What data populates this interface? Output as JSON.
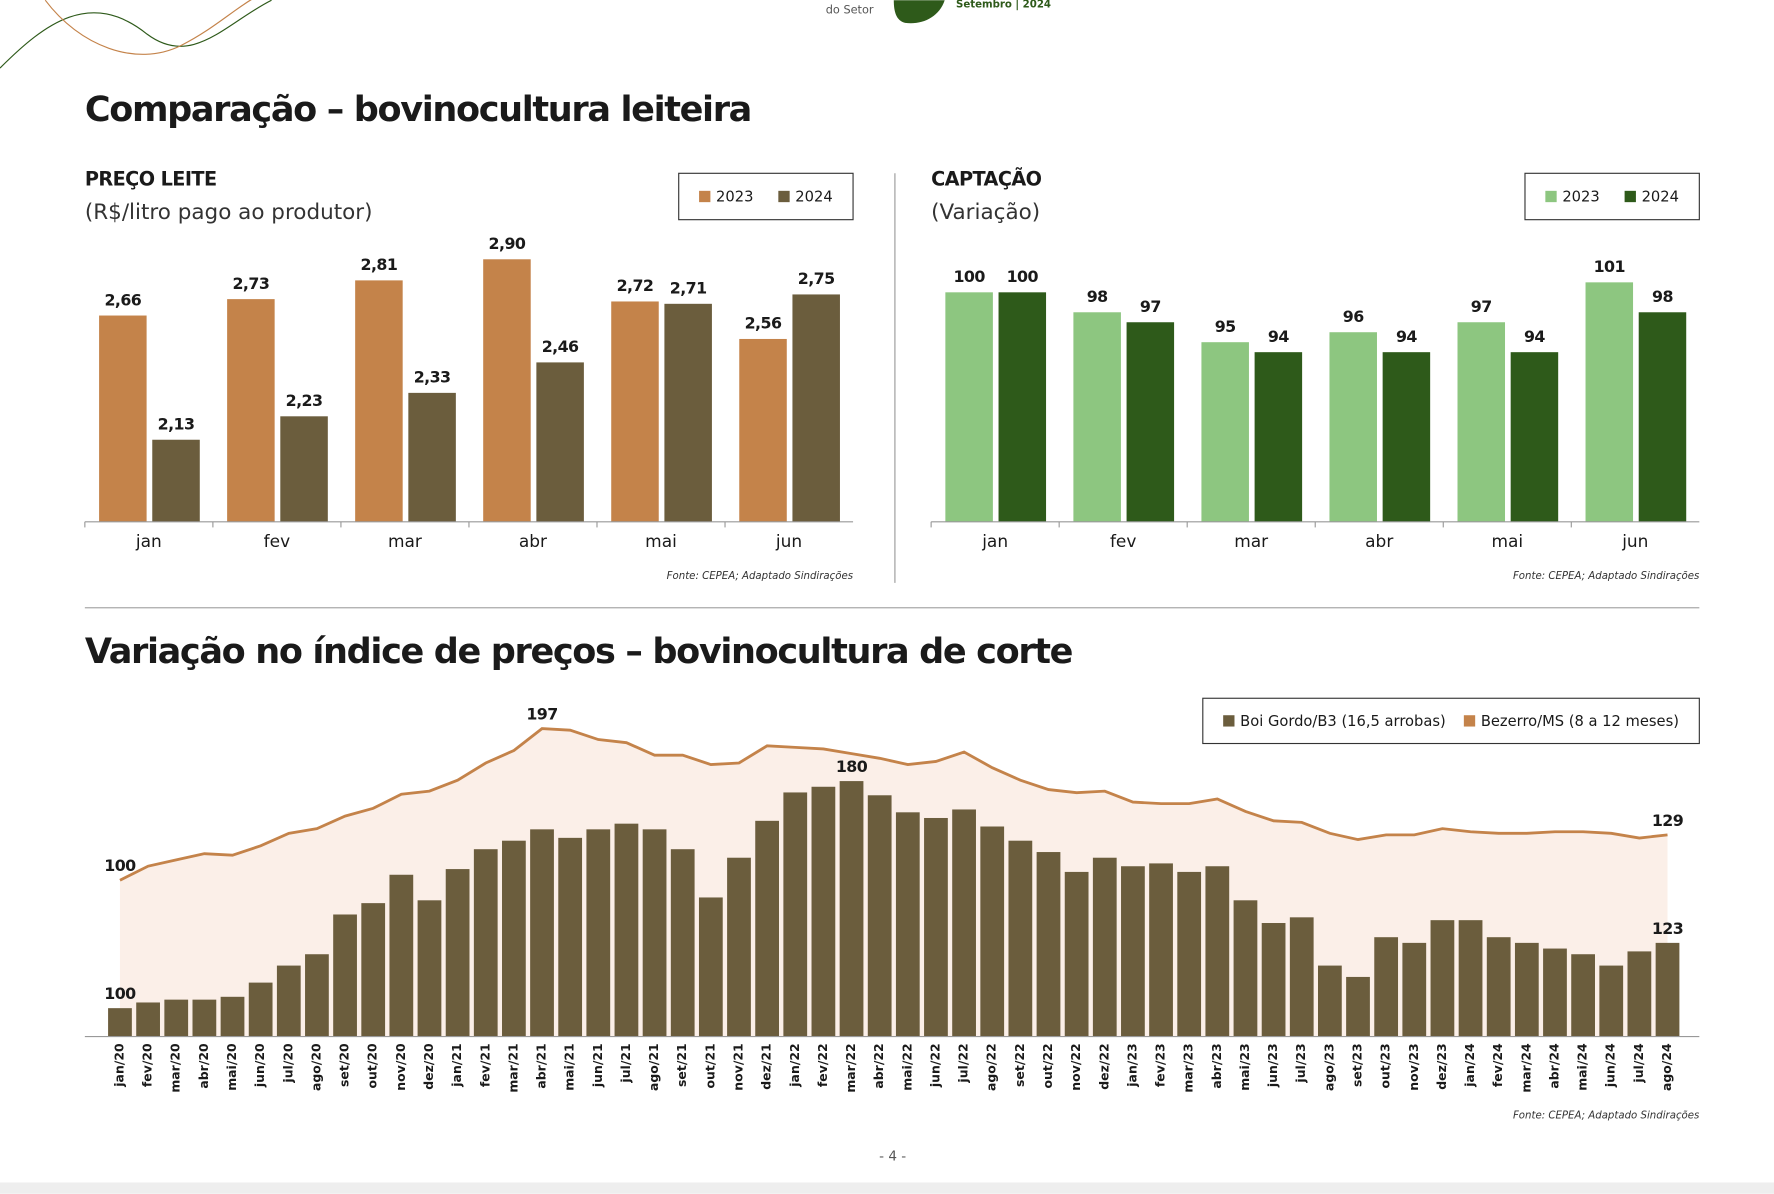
{
  "header": {
    "tagline": "do Setor",
    "edition": "Setembro | 2024"
  },
  "sections": [
    {
      "title": "Comparação – bovinocultura leiteira"
    },
    {
      "title": "Variação no índice de preços – bovinocultura de corte"
    }
  ],
  "chart_data": [
    {
      "type": "bar",
      "title": "PREÇO LEITE",
      "subtitle": "(R$/litro pago ao produtor)",
      "categories": [
        "jan",
        "fev",
        "mar",
        "abr",
        "mai",
        "jun"
      ],
      "series": [
        {
          "name": "2023",
          "color": "#c4834a",
          "values": [
            2.66,
            2.73,
            2.81,
            2.9,
            2.72,
            2.56
          ],
          "value_labels": [
            "2,66",
            "2,73",
            "2,81",
            "2,90",
            "2,72",
            "2,56"
          ]
        },
        {
          "name": "2024",
          "color": "#6b5d3d",
          "values": [
            2.13,
            2.23,
            2.33,
            2.46,
            2.71,
            2.75
          ],
          "value_labels": [
            "2,13",
            "2,23",
            "2,33",
            "2,46",
            "2,71",
            "2,75"
          ]
        }
      ],
      "ylim": [
        1.78,
        3.04
      ],
      "legend": "top-right",
      "source": "Fonte: CEPEA; Adaptado Sindirações"
    },
    {
      "type": "bar",
      "title": "CAPTAÇÃO",
      "subtitle": "(Variação)",
      "categories": [
        "jan",
        "fev",
        "mar",
        "abr",
        "mai",
        "jun"
      ],
      "series": [
        {
          "name": "2023",
          "color": "#8dc680",
          "values": [
            100,
            98,
            95,
            96,
            97,
            101
          ]
        },
        {
          "name": "2024",
          "color": "#2e5a1a",
          "values": [
            100,
            97,
            94,
            94,
            94,
            98
          ]
        }
      ],
      "ylim": [
        77,
        106.6
      ],
      "legend": "top-right",
      "source": "Fonte: CEPEA; Adaptado Sindirações"
    },
    {
      "type": "combo",
      "categories": [
        "jan/20",
        "fev/20",
        "mar/20",
        "abr/20",
        "mai/20",
        "jun/20",
        "jul/20",
        "ago/20",
        "set/20",
        "out/20",
        "nov/20",
        "dez/20",
        "jan/21",
        "fev/21",
        "mar/21",
        "abr/21",
        "mai/21",
        "jun/21",
        "jul/21",
        "ago/21",
        "set/21",
        "out/21",
        "nov/21",
        "dez/21",
        "jan/22",
        "fev/22",
        "mar/22",
        "abr/22",
        "mai/22",
        "jun/22",
        "jul/22",
        "ago/22",
        "set/22",
        "out/22",
        "nov/22",
        "dez/22",
        "jan/23",
        "fev/23",
        "mar/23",
        "abr/23",
        "mai/23",
        "jun/23",
        "jul/23",
        "ago/23",
        "set/23",
        "out/23",
        "nov/23",
        "dez/23",
        "jan/24",
        "fev/24",
        "mar/24",
        "abr/24",
        "mai/24",
        "jun/24",
        "jul/24",
        "ago/24"
      ],
      "series": [
        {
          "name": "Boi Gordo/B3 (16,5 arrobas)",
          "type": "bar",
          "color": "#6b5d3d",
          "labeled": [
            0,
            26,
            55
          ],
          "values": [
            100,
            102,
            103,
            103,
            104,
            109,
            115,
            119,
            133,
            137,
            147,
            138,
            149,
            156,
            159,
            163,
            160,
            163,
            165,
            163,
            156,
            139,
            153,
            166,
            176,
            178,
            180,
            175,
            169,
            167,
            170,
            164,
            159,
            155,
            148,
            153,
            150,
            151,
            148,
            150,
            138,
            130,
            132,
            115,
            111,
            125,
            123,
            131,
            131,
            125,
            123,
            121,
            119,
            115,
            120,
            123
          ]
        },
        {
          "name": "Bezerro/MS (8 a 12 meses)",
          "type": "line",
          "axis": "y2",
          "color": "#c4834a",
          "area_color": "#fbefe8",
          "labeled": [
            0,
            15,
            55
          ],
          "values": [
            100,
            109,
            113,
            117,
            116,
            122,
            130,
            133,
            141,
            146,
            155,
            157,
            164,
            175,
            183,
            197,
            196,
            190,
            188,
            180,
            180,
            174,
            175,
            186,
            185,
            184,
            181,
            178,
            174,
            176,
            182,
            172,
            164,
            158,
            156,
            157,
            150,
            149,
            149,
            152,
            144,
            138,
            137,
            130,
            126,
            129,
            129,
            133,
            131,
            130,
            130,
            131,
            131,
            130,
            127,
            129
          ]
        }
      ],
      "ylim": [
        90,
        204
      ],
      "y2lim": [
        0,
        207
      ],
      "legend": "top-right",
      "source": "Fonte: CEPEA; Adaptado Sindirações"
    }
  ],
  "page_number": "- 4 -"
}
